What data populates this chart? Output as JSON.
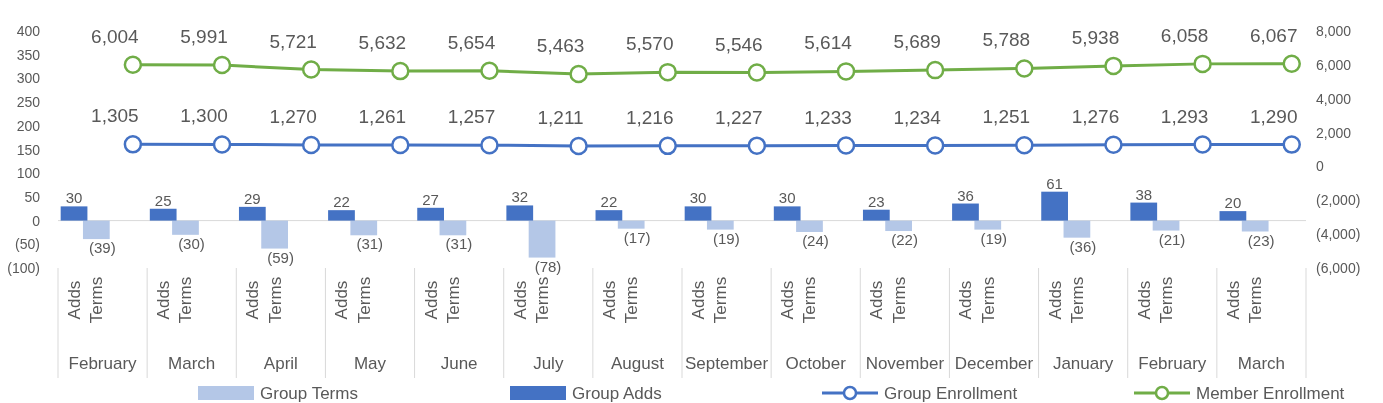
{
  "chart_data": {
    "type": "bar",
    "categories": [
      "February",
      "March",
      "April",
      "May",
      "June",
      "July",
      "August",
      "September",
      "October",
      "November",
      "December",
      "January",
      "February",
      "March"
    ],
    "series": [
      {
        "name": "Group Terms",
        "color": "#b4c7e7",
        "values": [
          -39,
          -30,
          -59,
          -31,
          -31,
          -78,
          -17,
          -19,
          -24,
          -22,
          -19,
          -36,
          -21,
          -23
        ],
        "value_labels": [
          "(39)",
          "(30)",
          "(59)",
          "(31)",
          "(31)",
          "(78)",
          "(17)",
          "(19)",
          "(24)",
          "(22)",
          "(19)",
          "(36)",
          "(21)",
          "(23)"
        ]
      },
      {
        "name": "Group Adds",
        "color": "#4472c4",
        "values": [
          30,
          25,
          29,
          22,
          27,
          32,
          22,
          30,
          30,
          23,
          36,
          61,
          38,
          20
        ],
        "value_labels": [
          "30",
          "25",
          "29",
          "22",
          "27",
          "32",
          "22",
          "30",
          "30",
          "23",
          "36",
          "61",
          "38",
          "20"
        ]
      },
      {
        "name": "Group Enrollment",
        "type": "line",
        "axis": "y2",
        "color": "#4472c4",
        "values": [
          1305,
          1300,
          1270,
          1261,
          1257,
          1211,
          1216,
          1227,
          1233,
          1234,
          1251,
          1276,
          1293,
          1290
        ],
        "value_labels": [
          "1,305",
          "1,300",
          "1,270",
          "1,261",
          "1,257",
          "1,211",
          "1,216",
          "1,227",
          "1,233",
          "1,234",
          "1,251",
          "1,276",
          "1,293",
          "1,290"
        ]
      },
      {
        "name": "Member Enrollment",
        "type": "line",
        "axis": "y2",
        "color": "#70ad47",
        "values": [
          6004,
          5991,
          5721,
          5632,
          5654,
          5463,
          5570,
          5546,
          5614,
          5689,
          5788,
          5938,
          6058,
          6067
        ],
        "value_labels": [
          "6,004",
          "5,991",
          "5,721",
          "5,632",
          "5,654",
          "5,463",
          "5,570",
          "5,546",
          "5,614",
          "5,689",
          "5,788",
          "5,938",
          "6,058",
          "6,067"
        ]
      }
    ],
    "ylim": [
      -100,
      400
    ],
    "yticks": [
      400,
      350,
      300,
      250,
      200,
      150,
      100,
      50,
      0,
      {
        "value": -50,
        "label": "(50)"
      },
      {
        "value": -100,
        "label": "(100)"
      }
    ],
    "y2lim": [
      -6000,
      8000
    ],
    "y2ticks": [
      {
        "value": 8000,
        "label": "8,000"
      },
      {
        "value": 6000,
        "label": "6,000"
      },
      {
        "value": 4000,
        "label": "4,000"
      },
      {
        "value": 2000,
        "label": "2,000"
      },
      0,
      {
        "value": -2000,
        "label": "(2,000)"
      },
      {
        "value": -4000,
        "label": "(4,000)"
      },
      {
        "value": -6000,
        "label": "(6,000)"
      }
    ],
    "annotations": [
      "Adds",
      "Terms",
      "Adds",
      "Terms",
      "Adds",
      "Terms",
      "Adds",
      "Terms",
      "Adds",
      "Terms",
      "Adds",
      "Terms",
      "Adds",
      "Terms",
      "Adds",
      "Terms",
      "Adds",
      "Terms",
      "Adds",
      "Terms",
      "Adds",
      "Terms",
      "Adds",
      "Terms",
      "Adds",
      "Terms",
      "Adds",
      "Terms"
    ],
    "marker": "circle",
    "legend": "bottom"
  }
}
